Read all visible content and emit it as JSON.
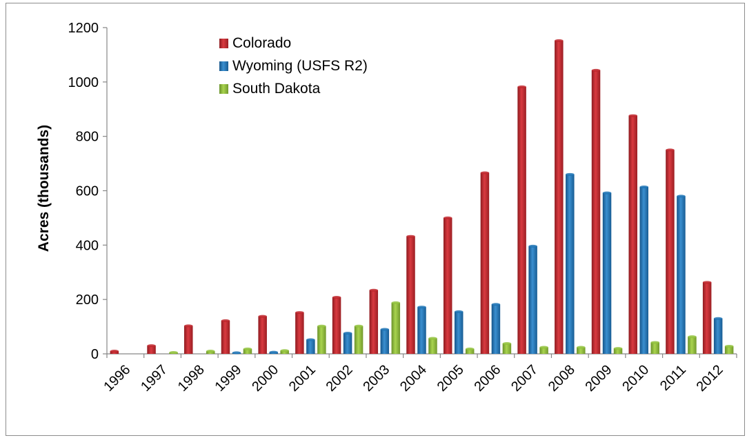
{
  "chart_data": {
    "type": "bar",
    "title": "",
    "xlabel": "",
    "ylabel": "Acres (thousands)",
    "ylim": [
      0,
      1200
    ],
    "yticks": [
      0,
      200,
      400,
      600,
      800,
      1000,
      1200
    ],
    "grid": false,
    "legend_position": "top-left",
    "categories": [
      "1996",
      "1997",
      "1998",
      "1999",
      "2000",
      "2001",
      "2002",
      "2003",
      "2004",
      "2005",
      "2006",
      "2007",
      "2008",
      "2009",
      "2010",
      "2011",
      "2012"
    ],
    "series": [
      {
        "name": "Colorado",
        "color": "#c0272d",
        "values": [
          10,
          30,
          103,
          122,
          138,
          152,
          208,
          234,
          432,
          500,
          666,
          982,
          1152,
          1043,
          876,
          750,
          263
        ]
      },
      {
        "name": "Wyoming (USFS R2)",
        "color": "#1f74b5",
        "values": [
          0,
          0,
          0,
          4,
          6,
          52,
          76,
          90,
          172,
          155,
          182,
          396,
          660,
          592,
          614,
          580,
          130
        ]
      },
      {
        "name": "South Dakota",
        "color": "#92c23d",
        "values": [
          0,
          5,
          10,
          18,
          12,
          102,
          102,
          188,
          57,
          18,
          38,
          24,
          24,
          20,
          42,
          63,
          28
        ]
      }
    ]
  }
}
